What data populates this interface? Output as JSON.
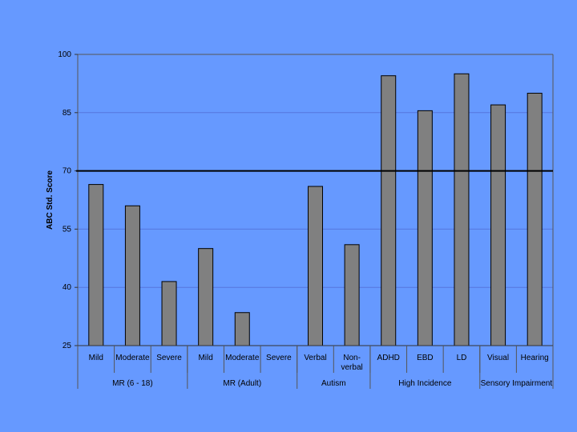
{
  "chart_data": {
    "type": "bar",
    "ylabel": "ABC Std. Score",
    "ylim": [
      25,
      100
    ],
    "yticks": [
      25,
      40,
      55,
      70,
      85,
      100
    ],
    "reference_line": 70,
    "grid": true,
    "categories": [
      "Mild",
      "Moderate",
      "Severe",
      "Mild",
      "Moderate",
      "Severe",
      "Verbal",
      "Non-verbal",
      "ADHD",
      "EBD",
      "LD",
      "Visual",
      "Hearing"
    ],
    "groups": [
      {
        "label": "MR (6 - 18)",
        "span": 3
      },
      {
        "label": "MR (Adult)",
        "span": 3
      },
      {
        "label": "Autism",
        "span": 2
      },
      {
        "label": "High Incidence",
        "span": 3
      },
      {
        "label": "Sensory Impairment",
        "span": 2
      }
    ],
    "values": [
      66.5,
      61,
      41.5,
      50,
      33.5,
      null,
      66,
      51,
      94.5,
      85.5,
      95,
      87,
      90
    ],
    "colors": {
      "background": "#6699ff",
      "bar_fill": "#808080",
      "bar_stroke": "#000000",
      "reference_line": "#000000",
      "gridline": "#5577dd"
    }
  }
}
